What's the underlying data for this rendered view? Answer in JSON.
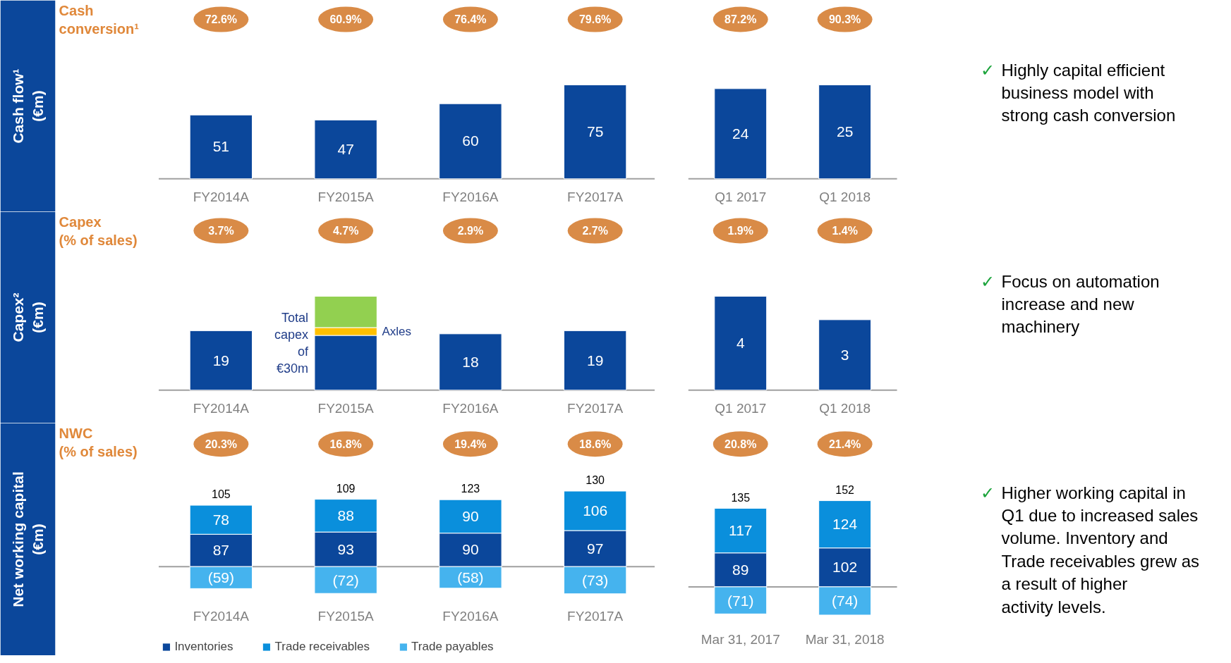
{
  "chart_data": [
    {
      "type": "bar",
      "title": "Cash conversion¹",
      "ylabel": "Cash flow¹ (€m)",
      "categories": [
        "FY2014A",
        "FY2015A",
        "FY2016A",
        "FY2017A"
      ],
      "values": [
        51,
        47,
        60,
        75
      ],
      "color": "#0b479b",
      "data_labels": true,
      "annotations": [
        "72.6%",
        "60.9%",
        "76.4%",
        "79.6%"
      ]
    },
    {
      "type": "bar",
      "categories": [
        "Q1 2017",
        "Q1 2018"
      ],
      "values": [
        24,
        25
      ],
      "color": "#0b479b",
      "data_labels": true,
      "annotations": [
        "87.2%",
        "90.3%"
      ]
    },
    {
      "type": "other",
      "annotations": [
        "✓ Highly capital efficient business model with strong cash conversion"
      ]
    },
    {
      "type": "bar",
      "title": "Capex (% of sales)",
      "ylabel": "Capex² (€m)",
      "categories": [
        "FY2014A",
        "FY2015A",
        "FY2016A",
        "FY2017A"
      ],
      "stacked": true,
      "series": [
        {
          "color": "#0b479b",
          "values": [
            19,
            17.5,
            18,
            19
          ],
          "value_labels": [
            "19",
            null,
            "18",
            "19"
          ]
        },
        {
          "name": "Axles",
          "color": "#ffc000",
          "values": [
            null,
            2.5,
            null,
            null
          ]
        },
        {
          "color": "#92d050",
          "values": [
            null,
            10,
            null,
            null
          ]
        }
      ],
      "annotations": [
        "3.7%",
        "4.7%",
        "2.9%",
        "2.7%",
        "Total capex of €30m"
      ]
    },
    {
      "type": "bar",
      "categories": [
        "Q1 2017",
        "Q1 2018"
      ],
      "values": [
        4,
        3
      ],
      "color": "#0b479b",
      "data_labels": true,
      "annotations": [
        "1.9%",
        "1.4%"
      ]
    },
    {
      "type": "other",
      "annotations": [
        "✓ Focus on automation increase and new machinery"
      ]
    },
    {
      "type": "bar",
      "title": "NWC (% of sales)",
      "ylabel": "Net working capital (€m)",
      "categories": [
        "FY2014A",
        "FY2015A",
        "FY2016A",
        "FY2017A"
      ],
      "stacked": true,
      "legend": "bottom",
      "series": [
        {
          "name": "Inventories",
          "color": "#0b479b",
          "values": [
            87,
            93,
            90,
            97
          ],
          "value_labels": [
            "87",
            "93",
            "90",
            "97"
          ]
        },
        {
          "name": "Trade receivables",
          "color": "#0a8fdc",
          "values": [
            78,
            88,
            90,
            106
          ],
          "value_labels": [
            "78",
            "88",
            "90",
            "106"
          ]
        },
        {
          "name": "Trade payables",
          "color": "#45b3ee",
          "values": [
            -59,
            -72,
            -58,
            -73
          ],
          "value_labels": [
            "(59)",
            "(72)",
            "(58)",
            "(73)"
          ]
        }
      ],
      "totals": [
        "105",
        "109",
        "123",
        "130"
      ],
      "annotations": [
        "20.3%",
        "16.8%",
        "19.4%",
        "18.6%"
      ]
    },
    {
      "type": "bar",
      "categories": [
        "Mar 31, 2017",
        "Mar 31, 2018"
      ],
      "stacked": true,
      "series": [
        {
          "color": "#0b479b",
          "values": [
            89,
            102
          ],
          "value_labels": [
            "89",
            "102"
          ]
        },
        {
          "color": "#0a8fdc",
          "values": [
            117,
            124
          ],
          "value_labels": [
            "117",
            "124"
          ]
        },
        {
          "color": "#45b3ee",
          "values": [
            -71,
            -74
          ],
          "value_labels": [
            "(71)",
            "(74)"
          ]
        }
      ],
      "totals": [
        "135",
        "152"
      ],
      "annotations": [
        "20.8%",
        "21.4%"
      ]
    },
    {
      "type": "other",
      "annotations": [
        "✓ Higher working capital in Q1 due to increased sales volume. Inventory and Trade receivables grew as a result of higher activity levels."
      ]
    }
  ]
}
